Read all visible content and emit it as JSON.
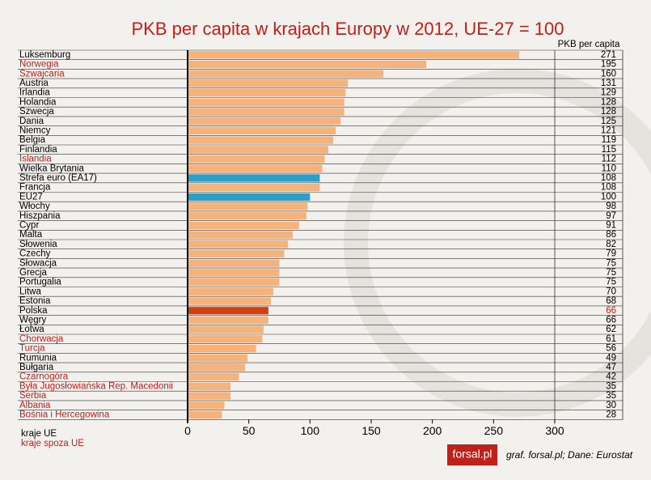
{
  "chart_data": {
    "type": "bar",
    "orientation": "horizontal",
    "title": "PKB per capita w krajach Europy w 2012, UE-27 = 100",
    "value_column_title": "PKB per capita",
    "categories": [
      "Luksemburg",
      "Norwegia",
      "Szwajcaria",
      "Austria",
      "Irlandia",
      "Holandia",
      "Szwecja",
      "Dania",
      "Niemcy",
      "Belgia",
      "Finlandia",
      "Islandia",
      "Wielka Brytania",
      "Strefa euro (EA17)",
      "Francja",
      "EU27",
      "Włochy",
      "Hiszpania",
      "Cypr",
      "Malta",
      "Słowenia",
      "Czechy",
      "Słowacja",
      "Grecja",
      "Portugalia",
      "Litwa",
      "Estonia",
      "Polska",
      "Węgry",
      "Łotwa",
      "Chorwacja",
      "Turcja",
      "Rumunia",
      "Bułgaria",
      "Czarnogóra",
      "Była Jugosłowiańska Rep. Macedonii",
      "Serbia",
      "Albania",
      "Bośnia i Hercegowina"
    ],
    "values": [
      271,
      195,
      160,
      131,
      129,
      128,
      128,
      125,
      121,
      119,
      115,
      112,
      110,
      108,
      108,
      100,
      98,
      97,
      91,
      86,
      82,
      79,
      75,
      75,
      75,
      70,
      68,
      66,
      66,
      62,
      61,
      56,
      49,
      47,
      42,
      35,
      35,
      30,
      28
    ],
    "colors": [
      "#f5b27a",
      "#f5b27a",
      "#f5b27a",
      "#f5b27a",
      "#f5b27a",
      "#f5b27a",
      "#f5b27a",
      "#f5b27a",
      "#f5b27a",
      "#f5b27a",
      "#f5b27a",
      "#f5b27a",
      "#f5b27a",
      "#2aa0c8",
      "#f5b27a",
      "#2aa0c8",
      "#f5b27a",
      "#f5b27a",
      "#f5b27a",
      "#f5b27a",
      "#f5b27a",
      "#f5b27a",
      "#f5b27a",
      "#f5b27a",
      "#f5b27a",
      "#f5b27a",
      "#f5b27a",
      "#d2400f",
      "#f5b27a",
      "#f5b27a",
      "#f5b27a",
      "#f5b27a",
      "#f5b27a",
      "#f5b27a",
      "#f5b27a",
      "#f5b27a",
      "#f5b27a",
      "#f5b27a",
      "#f5b27a"
    ],
    "label_colors": [
      "#000",
      "#c0201a",
      "#c0201a",
      "#000",
      "#000",
      "#000",
      "#000",
      "#000",
      "#000",
      "#000",
      "#000",
      "#c0201a",
      "#000",
      "#000",
      "#000",
      "#000",
      "#000",
      "#000",
      "#000",
      "#000",
      "#000",
      "#000",
      "#000",
      "#000",
      "#000",
      "#000",
      "#000",
      "#000",
      "#000",
      "#000",
      "#c0201a",
      "#c0201a",
      "#000",
      "#000",
      "#c0201a",
      "#c0201a",
      "#c0201a",
      "#c0201a",
      "#c0201a"
    ],
    "value_label_colors": [
      "#000",
      "#000",
      "#000",
      "#000",
      "#000",
      "#000",
      "#000",
      "#000",
      "#000",
      "#000",
      "#000",
      "#000",
      "#000",
      "#000",
      "#000",
      "#000",
      "#000",
      "#000",
      "#000",
      "#000",
      "#000",
      "#000",
      "#000",
      "#000",
      "#000",
      "#000",
      "#000",
      "#c0201a",
      "#000",
      "#000",
      "#000",
      "#000",
      "#000",
      "#000",
      "#000",
      "#000",
      "#000",
      "#000",
      "#000"
    ],
    "xlim": [
      0,
      300
    ],
    "xticks": [
      0,
      50,
      100,
      150,
      200,
      250,
      300
    ],
    "legend": [
      {
        "label": "kraje UE",
        "color": "#000"
      },
      {
        "label": "kraje spoza UE",
        "color": "#c0201a"
      }
    ],
    "logo": "forsal.pl",
    "source": "graf. forsal.pl;  Dane: Eurostat"
  }
}
